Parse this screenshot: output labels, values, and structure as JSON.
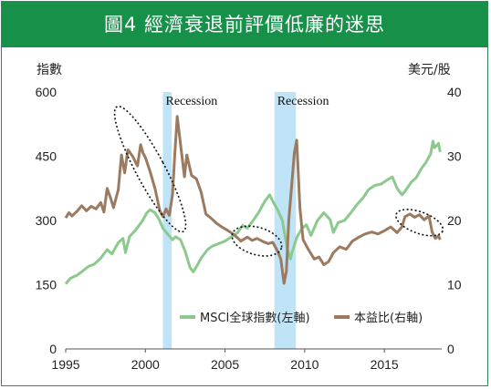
{
  "header": {
    "title": "圖4  經濟衰退前評價低廉的迷思"
  },
  "chart_data": {
    "type": "line",
    "title": "圖4  經濟衰退前評價低廉的迷思",
    "y_left": {
      "label": "指數",
      "ticks": [
        0,
        150,
        300,
        450,
        600
      ],
      "range": [
        0,
        600
      ]
    },
    "y_right": {
      "label": "美元/股",
      "ticks": [
        0,
        10,
        20,
        30,
        40
      ],
      "range": [
        0,
        40
      ]
    },
    "x_axis": {
      "ticks": [
        1995,
        2000,
        2005,
        2010,
        2015
      ],
      "range": [
        1995,
        2018.6
      ]
    },
    "recessions": [
      {
        "label": "Recession",
        "start": 2001.1,
        "end": 2001.65
      },
      {
        "label": "Recession",
        "start": 2008.1,
        "end": 2009.45
      }
    ],
    "series": [
      {
        "name": "MSCI全球指數(左軸)",
        "axis": "left",
        "color": "#8cc98c",
        "points": [
          [
            1995.0,
            152
          ],
          [
            1995.3,
            165
          ],
          [
            1995.7,
            172
          ],
          [
            1996.0,
            180
          ],
          [
            1996.4,
            192
          ],
          [
            1996.8,
            198
          ],
          [
            1997.2,
            212
          ],
          [
            1997.6,
            232
          ],
          [
            1997.9,
            222
          ],
          [
            1998.3,
            248
          ],
          [
            1998.6,
            258
          ],
          [
            1998.75,
            225
          ],
          [
            1999.0,
            262
          ],
          [
            1999.4,
            278
          ],
          [
            1999.8,
            298
          ],
          [
            2000.1,
            318
          ],
          [
            2000.3,
            325
          ],
          [
            2000.6,
            318
          ],
          [
            2000.9,
            300
          ],
          [
            2001.1,
            282
          ],
          [
            2001.4,
            268
          ],
          [
            2001.7,
            255
          ],
          [
            2001.9,
            262
          ],
          [
            2002.2,
            255
          ],
          [
            2002.5,
            228
          ],
          [
            2002.8,
            190
          ],
          [
            2003.0,
            180
          ],
          [
            2003.2,
            192
          ],
          [
            2003.5,
            212
          ],
          [
            2003.9,
            232
          ],
          [
            2004.2,
            240
          ],
          [
            2004.6,
            246
          ],
          [
            2005.0,
            252
          ],
          [
            2005.4,
            262
          ],
          [
            2005.8,
            272
          ],
          [
            2006.1,
            288
          ],
          [
            2006.4,
            282
          ],
          [
            2006.8,
            302
          ],
          [
            2007.1,
            318
          ],
          [
            2007.5,
            345
          ],
          [
            2007.8,
            360
          ],
          [
            2008.0,
            345
          ],
          [
            2008.3,
            325
          ],
          [
            2008.6,
            300
          ],
          [
            2008.9,
            235
          ],
          [
            2009.1,
            210
          ],
          [
            2009.2,
            225
          ],
          [
            2009.5,
            260
          ],
          [
            2009.8,
            280
          ],
          [
            2010.1,
            290
          ],
          [
            2010.4,
            265
          ],
          [
            2010.8,
            300
          ],
          [
            2011.2,
            318
          ],
          [
            2011.6,
            302
          ],
          [
            2011.8,
            272
          ],
          [
            2012.1,
            295
          ],
          [
            2012.5,
            300
          ],
          [
            2012.9,
            318
          ],
          [
            2013.3,
            338
          ],
          [
            2013.7,
            355
          ],
          [
            2014.0,
            372
          ],
          [
            2014.4,
            382
          ],
          [
            2014.8,
            385
          ],
          [
            2015.2,
            395
          ],
          [
            2015.5,
            402
          ],
          [
            2015.8,
            375
          ],
          [
            2016.1,
            360
          ],
          [
            2016.3,
            368
          ],
          [
            2016.7,
            390
          ],
          [
            2017.0,
            400
          ],
          [
            2017.3,
            420
          ],
          [
            2017.6,
            435
          ],
          [
            2017.9,
            455
          ],
          [
            2018.05,
            485
          ],
          [
            2018.15,
            470
          ],
          [
            2018.4,
            480
          ],
          [
            2018.5,
            460
          ]
        ]
      },
      {
        "name": "本益比(右軸)",
        "axis": "right",
        "color": "#9b7a60",
        "points": [
          [
            1995.0,
            20.4
          ],
          [
            1995.2,
            21.2
          ],
          [
            1995.4,
            20.7
          ],
          [
            1995.7,
            21.4
          ],
          [
            1996.0,
            22.3
          ],
          [
            1996.3,
            21.5
          ],
          [
            1996.6,
            22.2
          ],
          [
            1996.9,
            21.8
          ],
          [
            1997.2,
            22.8
          ],
          [
            1997.4,
            21.3
          ],
          [
            1997.6,
            25.0
          ],
          [
            1997.8,
            23.6
          ],
          [
            1998.0,
            22.0
          ],
          [
            1998.3,
            24.8
          ],
          [
            1998.5,
            30.2
          ],
          [
            1998.7,
            27.4
          ],
          [
            1998.9,
            31.0
          ],
          [
            1999.2,
            30.0
          ],
          [
            1999.5,
            28.5
          ],
          [
            1999.7,
            31.8
          ],
          [
            1999.85,
            30.5
          ],
          [
            2000.0,
            29.8
          ],
          [
            2000.3,
            27.6
          ],
          [
            2000.6,
            25.0
          ],
          [
            2000.9,
            21.6
          ],
          [
            2001.1,
            20.6
          ],
          [
            2001.3,
            21.8
          ],
          [
            2001.5,
            20.8
          ],
          [
            2001.7,
            24.0
          ],
          [
            2001.85,
            30.5
          ],
          [
            2002.0,
            36.2
          ],
          [
            2002.2,
            32.0
          ],
          [
            2002.45,
            26.8
          ],
          [
            2002.6,
            30.2
          ],
          [
            2002.9,
            27.0
          ],
          [
            2003.2,
            26.5
          ],
          [
            2003.5,
            24.4
          ],
          [
            2003.8,
            21.0
          ],
          [
            2004.1,
            20.4
          ],
          [
            2004.5,
            19.5
          ],
          [
            2004.8,
            19.0
          ],
          [
            2005.2,
            18.4
          ],
          [
            2005.6,
            17.7
          ],
          [
            2006.0,
            16.8
          ],
          [
            2006.4,
            17.4
          ],
          [
            2006.7,
            16.9
          ],
          [
            2007.0,
            17.2
          ],
          [
            2007.4,
            16.7
          ],
          [
            2007.7,
            16.4
          ],
          [
            2008.0,
            16.6
          ],
          [
            2008.3,
            15.2
          ],
          [
            2008.5,
            14.0
          ],
          [
            2008.7,
            10.2
          ],
          [
            2008.85,
            12.1
          ],
          [
            2009.0,
            20.0
          ],
          [
            2009.2,
            26.0
          ],
          [
            2009.35,
            30.5
          ],
          [
            2009.5,
            32.5
          ],
          [
            2009.7,
            22.0
          ],
          [
            2009.9,
            17.0
          ],
          [
            2010.2,
            15.6
          ],
          [
            2010.6,
            14.0
          ],
          [
            2010.9,
            14.3
          ],
          [
            2011.2,
            13.1
          ],
          [
            2011.5,
            13.6
          ],
          [
            2011.8,
            15.0
          ],
          [
            2012.2,
            15.9
          ],
          [
            2012.6,
            15.5
          ],
          [
            2013.0,
            16.8
          ],
          [
            2013.4,
            17.4
          ],
          [
            2013.8,
            17.9
          ],
          [
            2014.2,
            18.2
          ],
          [
            2014.6,
            17.9
          ],
          [
            2015.0,
            18.4
          ],
          [
            2015.4,
            19.0
          ],
          [
            2015.8,
            18.1
          ],
          [
            2016.1,
            19.0
          ],
          [
            2016.3,
            20.6
          ],
          [
            2016.6,
            21.0
          ],
          [
            2016.9,
            20.5
          ],
          [
            2017.2,
            20.9
          ],
          [
            2017.5,
            20.1
          ],
          [
            2017.8,
            20.7
          ],
          [
            2018.0,
            18.2
          ],
          [
            2018.2,
            17.2
          ],
          [
            2018.4,
            17.6
          ],
          [
            2018.5,
            17.0
          ]
        ]
      }
    ],
    "annotations": [
      {
        "type": "ellipse",
        "cx": 2000.3,
        "cy_left": 420,
        "rx_years": 0.9,
        "ry_left": 165,
        "rotate": -28
      },
      {
        "type": "ellipse",
        "cx": 2007.0,
        "cy_left": 252,
        "rx_years": 1.6,
        "ry_left": 32,
        "rotate": 16
      },
      {
        "type": "ellipse",
        "cx": 2017.2,
        "cy_left": 295,
        "rx_years": 1.55,
        "ry_left": 25,
        "rotate": 20
      }
    ],
    "legend": {
      "placement": "bottom-right"
    },
    "grid": false
  }
}
